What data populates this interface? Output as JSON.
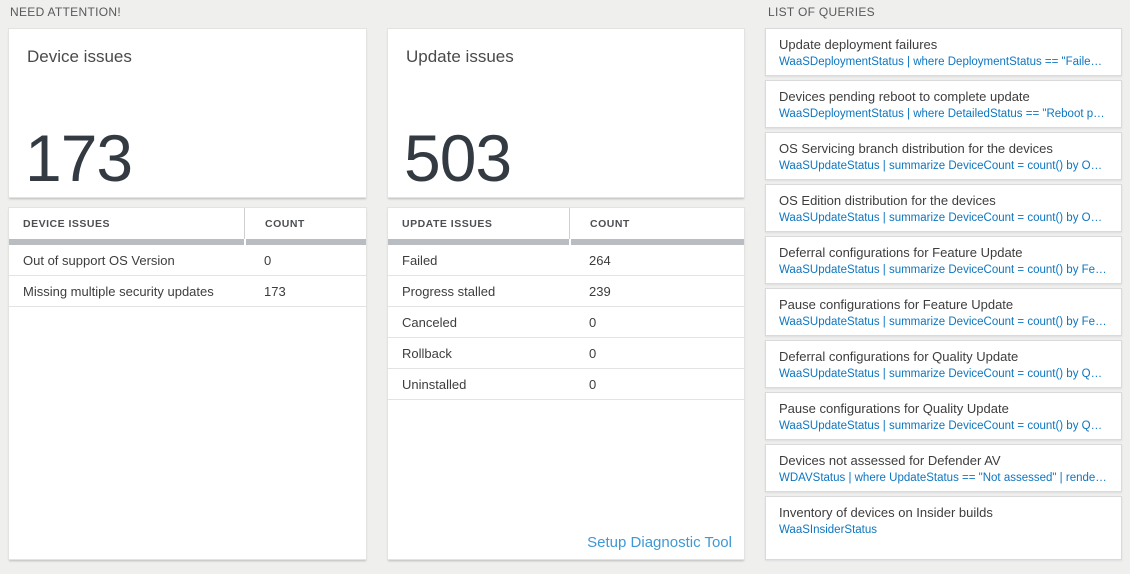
{
  "sections": {
    "need_attention": "NEED ATTENTION!",
    "list_of_queries": "LIST OF QUERIES"
  },
  "device_tile": {
    "title": "Device issues",
    "big_number": "173",
    "table": {
      "headers": [
        "DEVICE ISSUES",
        "COUNT"
      ],
      "rows": [
        {
          "label": "Out of support OS Version",
          "count": "0"
        },
        {
          "label": "Missing multiple security updates",
          "count": "173"
        }
      ]
    }
  },
  "update_tile": {
    "title": "Update issues",
    "big_number": "503",
    "table": {
      "headers": [
        "UPDATE ISSUES",
        "COUNT"
      ],
      "rows": [
        {
          "label": "Failed",
          "count": "264"
        },
        {
          "label": "Progress stalled",
          "count": "239"
        },
        {
          "label": "Canceled",
          "count": "0"
        },
        {
          "label": "Rollback",
          "count": "0"
        },
        {
          "label": "Uninstalled",
          "count": "0"
        }
      ]
    },
    "setup_link": "Setup Diagnostic Tool"
  },
  "queries": {
    "items": [
      {
        "title": "Update deployment failures",
        "query": "WaaSDeploymentStatus | where DeploymentStatus == \"Failed\" |..."
      },
      {
        "title": "Devices pending reboot to complete update",
        "query": "WaaSDeploymentStatus | where DetailedStatus == \"Reboot pend..."
      },
      {
        "title": "OS Servicing branch distribution for the devices",
        "query": "WaaSUpdateStatus | summarize DeviceCount = count() by OSSer..."
      },
      {
        "title": "OS Edition distribution for the devices",
        "query": "WaaSUpdateStatus | summarize DeviceCount = count() by OSEdit..."
      },
      {
        "title": "Deferral configurations for Feature Update",
        "query": "WaaSUpdateStatus | summarize DeviceCount = count() by Featur..."
      },
      {
        "title": "Pause configurations for Feature Update",
        "query": "WaaSUpdateStatus | summarize DeviceCount = count() by Featur..."
      },
      {
        "title": "Deferral configurations for Quality Update",
        "query": "WaaSUpdateStatus | summarize DeviceCount = count() by Qualit..."
      },
      {
        "title": "Pause configurations for Quality Update",
        "query": "WaaSUpdateStatus | summarize DeviceCount = count() by Qualit..."
      },
      {
        "title": "Devices not assessed for Defender AV",
        "query": "WDAVStatus | where UpdateStatus == \"Not assessed\" | render ta..."
      },
      {
        "title": "Inventory of devices on Insider builds",
        "query": "WaaSInsiderStatus"
      }
    ]
  },
  "colors": {
    "page_background": "#efefee",
    "big_number_text": "#333a42",
    "query_link_blue": "#0d76c0",
    "setup_link_blue": "#3f98d5",
    "header_bar_gray": "#b9bdc2"
  }
}
